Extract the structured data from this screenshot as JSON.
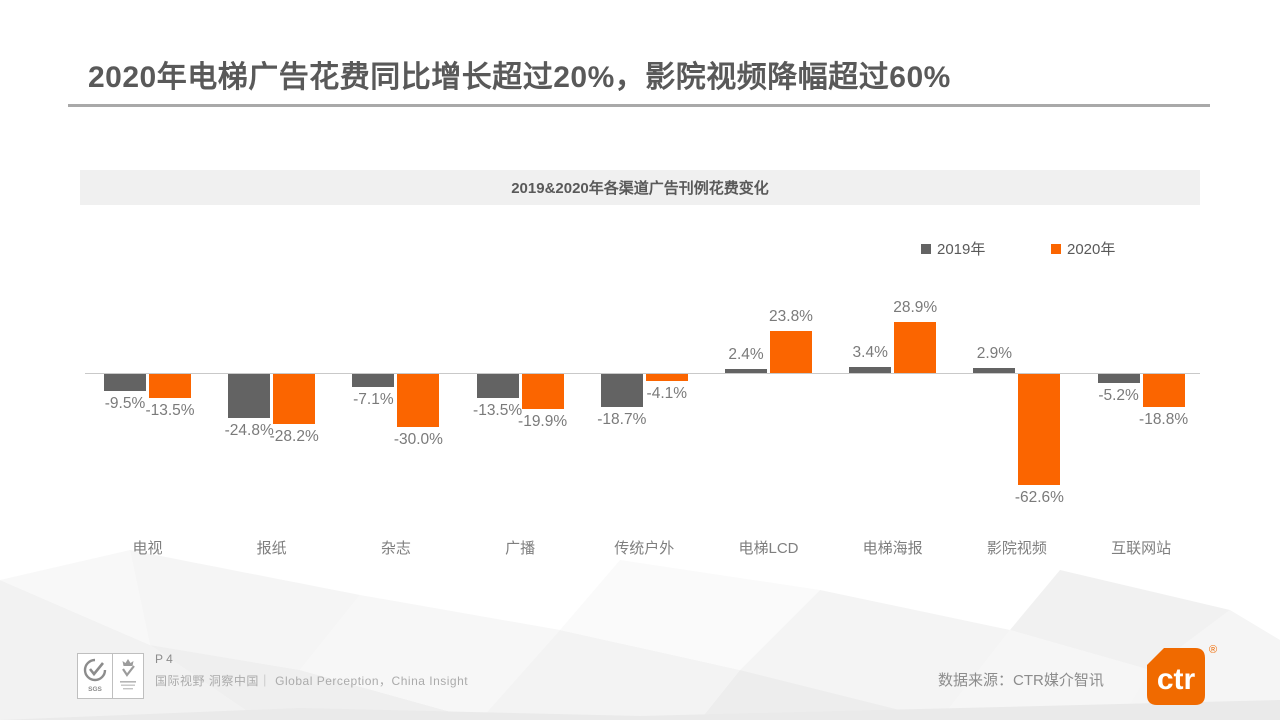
{
  "slide": {
    "title": "2020年电梯广告花费同比增长超过20%，影院视频降幅超过60%"
  },
  "chart_data": {
    "type": "bar",
    "title": "2019&2020年各渠道广告刊例花费变化",
    "categories": [
      "电视",
      "报纸",
      "杂志",
      "广播",
      "传统户外",
      "电梯LCD",
      "电梯海报",
      "影院视频",
      "互联网站"
    ],
    "series": [
      {
        "name": "2019年",
        "color": "#636363",
        "values": [
          -9.5,
          -24.8,
          -7.1,
          -13.5,
          -18.7,
          2.4,
          3.4,
          2.9,
          -5.2
        ],
        "labels": [
          "-9.5%",
          "-24.8%",
          "-7.1%",
          "-13.5%",
          "-18.7%",
          "2.4%",
          "3.4%",
          "2.9%",
          "-5.2%"
        ]
      },
      {
        "name": "2020年",
        "color": "#fb6500",
        "values": [
          -13.5,
          -28.2,
          -30.0,
          -19.9,
          -4.1,
          23.8,
          28.9,
          -62.6,
          -18.8
        ],
        "labels": [
          "-13.5%",
          "-28.2%",
          "-30.0%",
          "-19.9%",
          "-4.1%",
          "23.8%",
          "28.9%",
          "-62.6%",
          "-18.8%"
        ]
      }
    ],
    "ylabel": "",
    "xlabel": "",
    "ylim": [
      -70,
      35
    ],
    "grid": false,
    "legend_position": "top-right",
    "value_labels_shown": true
  },
  "colors": {
    "accent_orange": "#fb6500",
    "bar_gray": "#636363",
    "title_gray": "#595959",
    "band_bg": "#f0f0f0"
  },
  "footer": {
    "page_number": "P 4",
    "tagline": "国际视野 洞察中国｜ Global Perception，China Insight",
    "data_source": "数据来源：CTR媒介智讯",
    "logo_text": "ctr",
    "reg_mark": "®",
    "badge_1": "SGS",
    "badge_2": "UKAS"
  }
}
